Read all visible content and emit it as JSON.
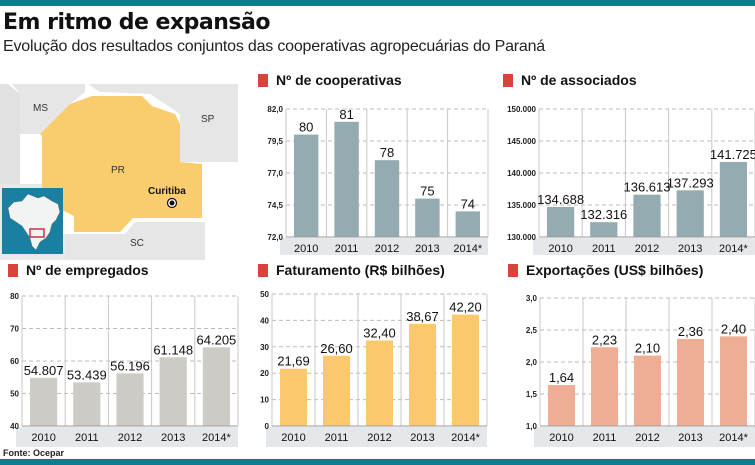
{
  "header": {
    "title": "Em ritmo de expansão",
    "subtitle": "Evolução dos resultados conjuntos das cooperativas agropecuárias do Paraná"
  },
  "map": {
    "labels": {
      "ms": "MS",
      "sp": "SP",
      "pr": "PR",
      "sc": "SC",
      "city": "Curitiba"
    },
    "colors": {
      "state": "#f9cd6e",
      "neighbors": "#e6e6e6",
      "inset": "#1a7fa0"
    }
  },
  "source": "Fonte: Ocepar",
  "chart_data": [
    {
      "type": "bar",
      "title": "Nº de cooperativas",
      "categories": [
        "2010",
        "2011",
        "2012",
        "2013",
        "2014*"
      ],
      "values": [
        80,
        81,
        78,
        75,
        74
      ],
      "labels": [
        "80",
        "81",
        "78",
        "75",
        "74"
      ],
      "yticks": [
        "72,0",
        "74,5",
        "77,0",
        "79,5",
        "82,0"
      ],
      "ylim": [
        72,
        82
      ],
      "color": "#93abb1",
      "grid": true
    },
    {
      "type": "bar",
      "title": "Nº de associados",
      "categories": [
        "2010",
        "2011",
        "2012",
        "2013",
        "2014*"
      ],
      "values": [
        134688,
        132316,
        136613,
        137293,
        141725
      ],
      "labels": [
        "134.688",
        "132.316",
        "136.613",
        "137.293",
        "141.725"
      ],
      "yticks": [
        "130.000",
        "135.000",
        "140.000",
        "145.000",
        "150.000"
      ],
      "ylim": [
        130000,
        150000
      ],
      "color": "#93abb1",
      "grid": true
    },
    {
      "type": "bar",
      "title": "Nº de empregados",
      "categories": [
        "2010",
        "2011",
        "2012",
        "2013",
        "2014*"
      ],
      "values": [
        54807,
        53439,
        56196,
        61148,
        64205
      ],
      "labels": [
        "54.807",
        "53.439",
        "56.196",
        "61.148",
        "64.205"
      ],
      "yticks": [
        "40",
        "50",
        "60",
        "70",
        "80"
      ],
      "ylim": [
        40000,
        80000
      ],
      "color": "#cccbc6",
      "grid": true
    },
    {
      "type": "bar",
      "title": "Faturamento (R$ bilhões)",
      "categories": [
        "2010",
        "2011",
        "2012",
        "2013",
        "2014*"
      ],
      "values": [
        21.69,
        26.6,
        32.4,
        38.67,
        42.2
      ],
      "labels": [
        "21,69",
        "26,60",
        "32,40",
        "38,67",
        "42,20"
      ],
      "yticks": [
        "0",
        "10",
        "20",
        "30",
        "40",
        "50"
      ],
      "ylim": [
        0,
        50
      ],
      "color": "#fbc86e",
      "grid": true
    },
    {
      "type": "bar",
      "title": "Exportações (US$ bilhões)",
      "categories": [
        "2010",
        "2011",
        "2012",
        "2013",
        "2014*"
      ],
      "values": [
        1.64,
        2.23,
        2.1,
        2.36,
        2.4
      ],
      "labels": [
        "1,64",
        "2,23",
        "2,10",
        "2,36",
        "2,40"
      ],
      "yticks": [
        "1,0",
        "1,5",
        "2,0",
        "2,5",
        "3,0"
      ],
      "ylim": [
        1.0,
        3.0
      ],
      "color": "#f0ad96",
      "grid": true
    }
  ]
}
